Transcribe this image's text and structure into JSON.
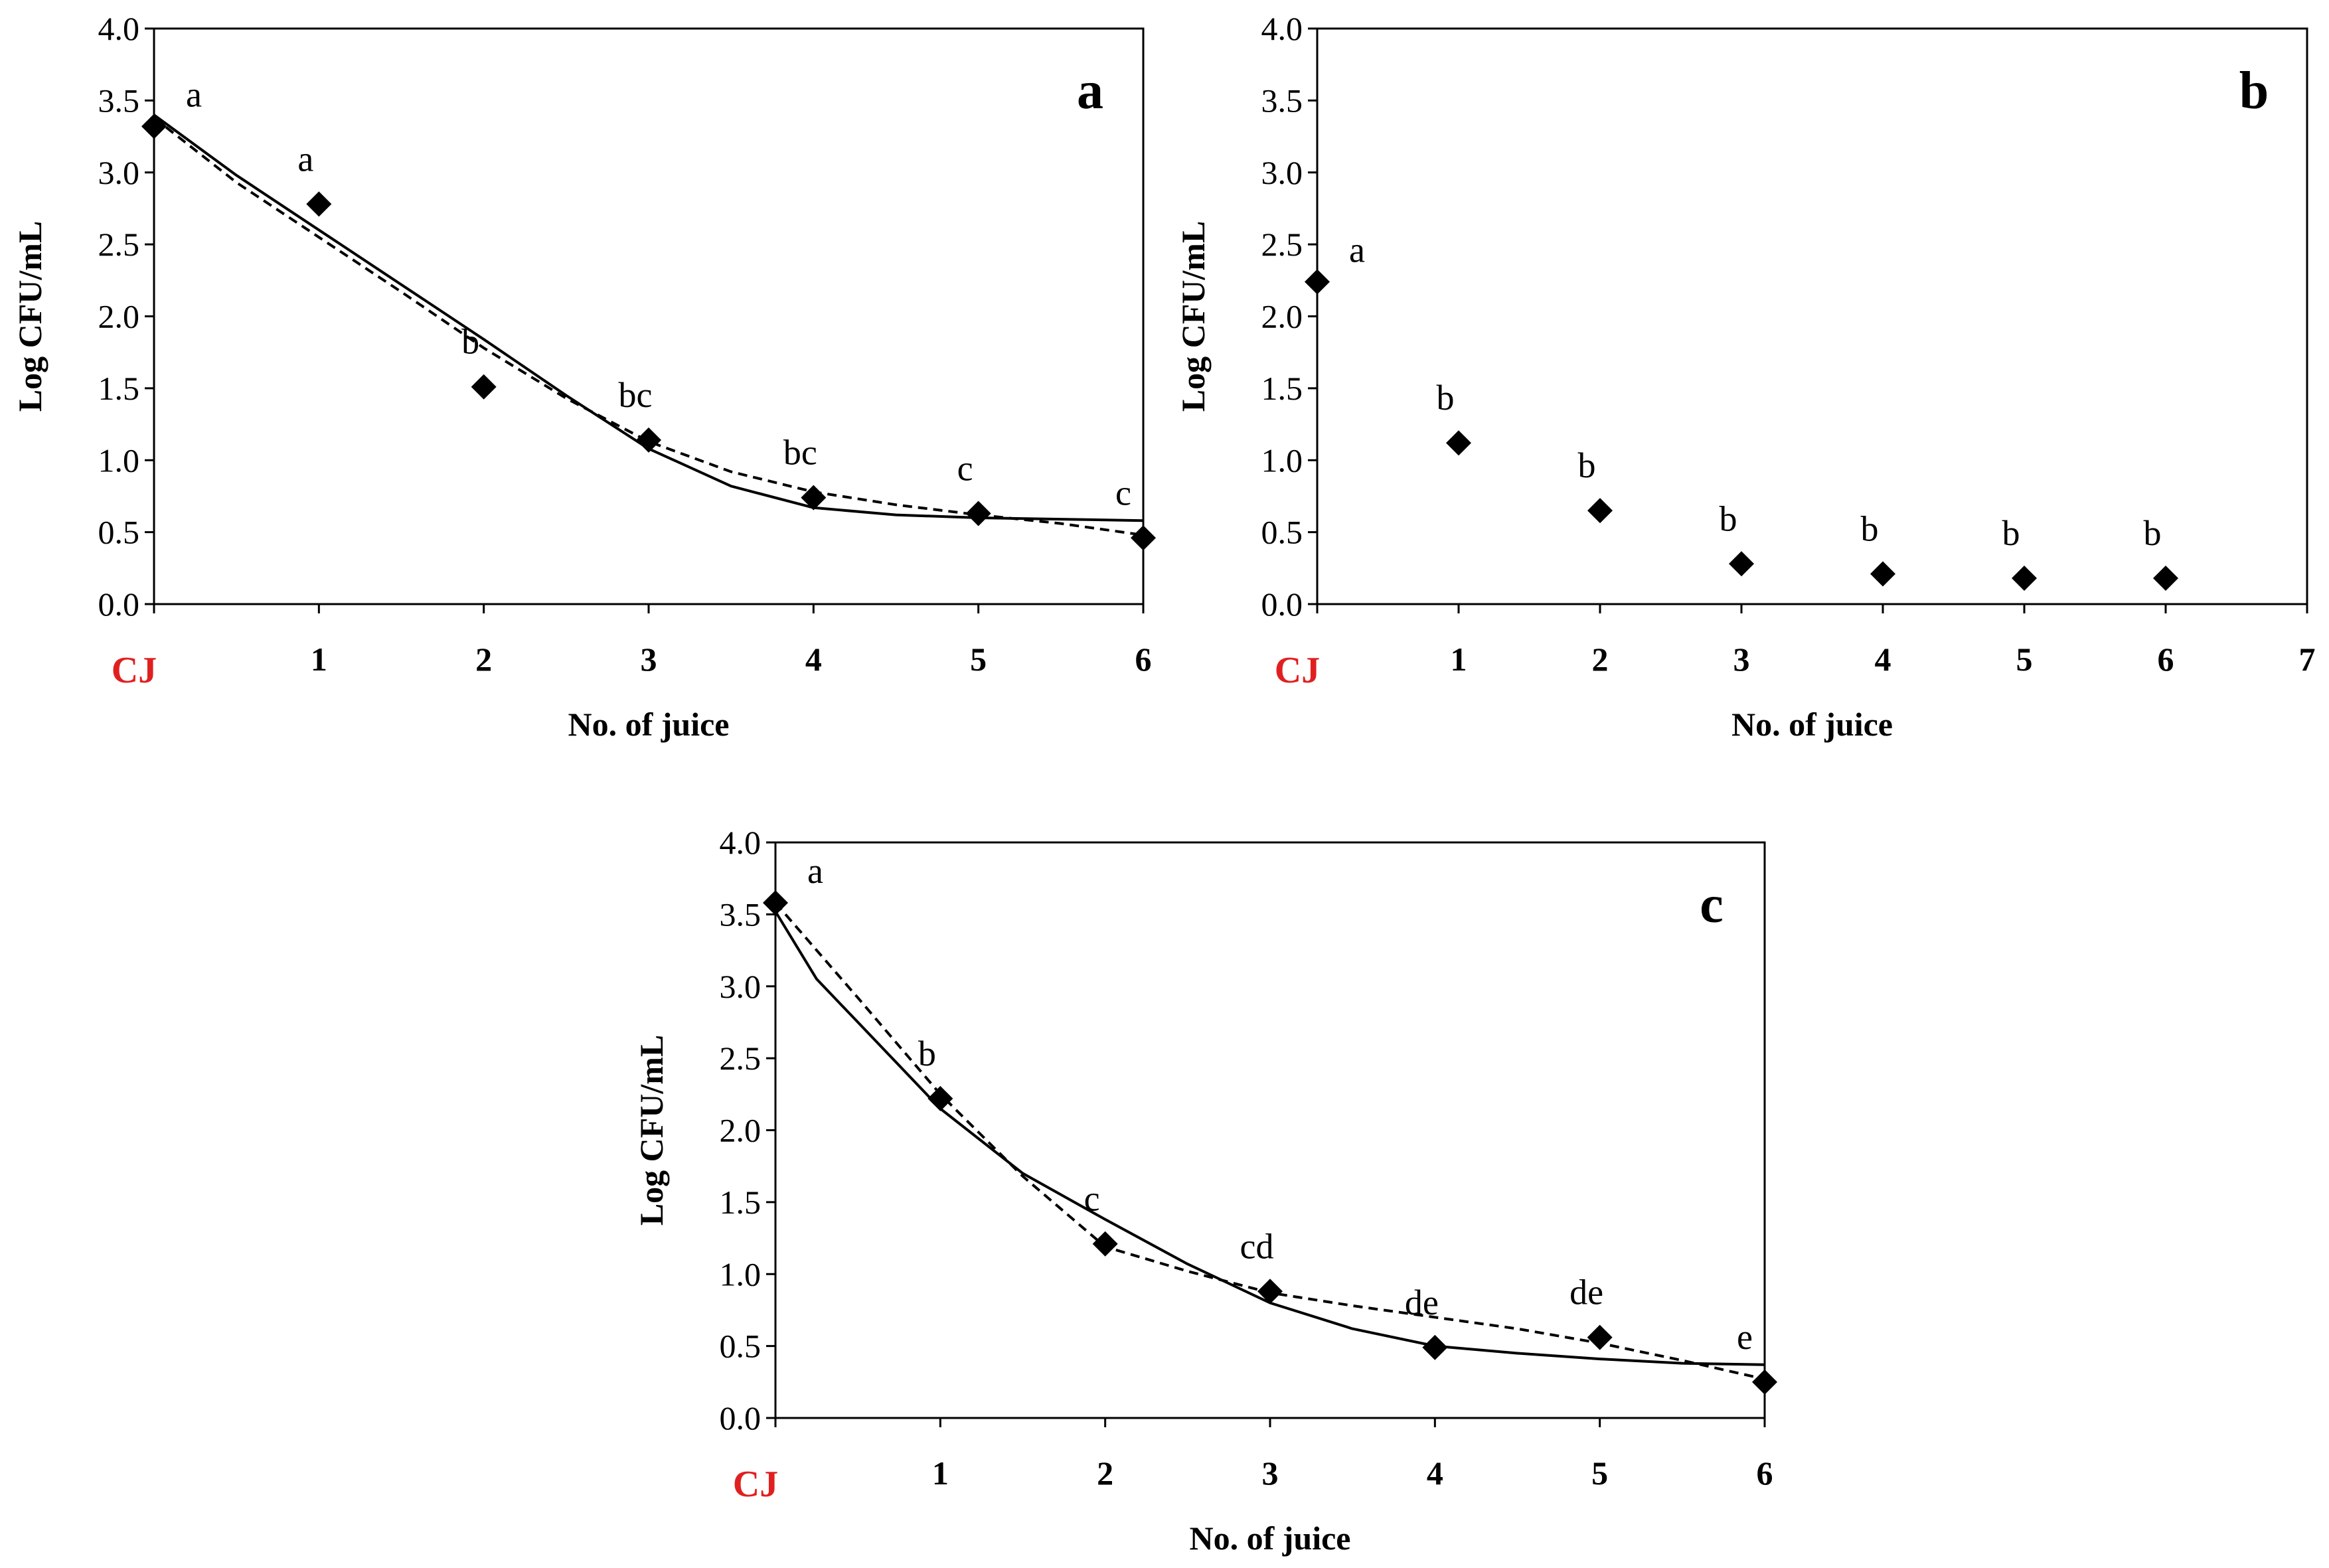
{
  "figure_description": "Log CFU/mL vs number of juice for three panels",
  "chart_data": [
    {
      "type": "scatter",
      "panel": "a",
      "title": "a",
      "xlabel": "No. of juice",
      "ylabel": "Log CFU/mL",
      "xlim": [
        0,
        6
      ],
      "ylim": [
        0,
        4.0
      ],
      "y_ticks": [
        "0.0",
        "0.5",
        "1.0",
        "1.5",
        "2.0",
        "2.5",
        "3.0",
        "3.5",
        "4.0"
      ],
      "x_ticks": [
        {
          "value": 0,
          "label": "CJ",
          "highlight": true
        },
        {
          "value": 1,
          "label": "1"
        },
        {
          "value": 2,
          "label": "2"
        },
        {
          "value": 3,
          "label": "3"
        },
        {
          "value": 4,
          "label": "4"
        },
        {
          "value": 5,
          "label": "5"
        },
        {
          "value": 6,
          "label": "6"
        }
      ],
      "points": [
        {
          "x": 0,
          "y": 3.32,
          "label": "a"
        },
        {
          "x": 1,
          "y": 2.78,
          "label": "a"
        },
        {
          "x": 2,
          "y": 1.51,
          "label": "b"
        },
        {
          "x": 3,
          "y": 1.14,
          "label": "bc"
        },
        {
          "x": 4,
          "y": 0.74,
          "label": "bc"
        },
        {
          "x": 5,
          "y": 0.63,
          "label": "c"
        },
        {
          "x": 6,
          "y": 0.46,
          "label": "c"
        }
      ],
      "fit_solid": [
        [
          0,
          3.4
        ],
        [
          0.5,
          2.98
        ],
        [
          1,
          2.6
        ],
        [
          1.5,
          2.22
        ],
        [
          2,
          1.84
        ],
        [
          2.5,
          1.45
        ],
        [
          3,
          1.08
        ],
        [
          3.5,
          0.82
        ],
        [
          4,
          0.67
        ],
        [
          4.5,
          0.62
        ],
        [
          5,
          0.6
        ],
        [
          5.5,
          0.59
        ],
        [
          6,
          0.58
        ]
      ],
      "fit_dashed": [
        [
          0,
          3.38
        ],
        [
          0.5,
          2.93
        ],
        [
          1,
          2.55
        ],
        [
          1.5,
          2.17
        ],
        [
          2,
          1.78
        ],
        [
          2.5,
          1.43
        ],
        [
          3,
          1.13
        ],
        [
          3.5,
          0.92
        ],
        [
          4,
          0.78
        ],
        [
          4.5,
          0.69
        ],
        [
          5,
          0.62
        ],
        [
          5.5,
          0.56
        ],
        [
          6,
          0.48
        ]
      ]
    },
    {
      "type": "scatter",
      "panel": "b",
      "title": "b",
      "xlabel": "No. of juice",
      "ylabel": "Log CFU/mL",
      "xlim": [
        0,
        7
      ],
      "ylim": [
        0,
        4.0
      ],
      "y_ticks": [
        "0.0",
        "0.5",
        "1.0",
        "1.5",
        "2.0",
        "2.5",
        "3.0",
        "3.5",
        "4.0"
      ],
      "x_ticks": [
        {
          "value": 0,
          "label": "CJ",
          "highlight": true
        },
        {
          "value": 1,
          "label": "1"
        },
        {
          "value": 2,
          "label": "2"
        },
        {
          "value": 3,
          "label": "3"
        },
        {
          "value": 4,
          "label": "4"
        },
        {
          "value": 5,
          "label": "5"
        },
        {
          "value": 6,
          "label": "6"
        },
        {
          "value": 7,
          "label": "7"
        }
      ],
      "points": [
        {
          "x": 0,
          "y": 2.24,
          "label": "a"
        },
        {
          "x": 1,
          "y": 1.12,
          "label": "b"
        },
        {
          "x": 2,
          "y": 0.65,
          "label": "b"
        },
        {
          "x": 3,
          "y": 0.28,
          "label": "b"
        },
        {
          "x": 4,
          "y": 0.21,
          "label": "b"
        },
        {
          "x": 5,
          "y": 0.18,
          "label": "b"
        },
        {
          "x": 6,
          "y": 0.18,
          "label": "b"
        }
      ],
      "fit_solid": [],
      "fit_dashed": []
    },
    {
      "type": "scatter",
      "panel": "c",
      "title": "c",
      "xlabel": "No. of juice",
      "ylabel": "Log CFU/mL",
      "xlim": [
        0,
        6
      ],
      "ylim": [
        0,
        4.0
      ],
      "y_ticks": [
        "0.0",
        "0.5",
        "1.0",
        "1.5",
        "2.0",
        "2.5",
        "3.0",
        "3.5",
        "4.0"
      ],
      "x_ticks": [
        {
          "value": 0,
          "label": "CJ",
          "highlight": true
        },
        {
          "value": 1,
          "label": "1"
        },
        {
          "value": 2,
          "label": "2"
        },
        {
          "value": 3,
          "label": "3"
        },
        {
          "value": 4,
          "label": "4"
        },
        {
          "value": 5,
          "label": "5"
        },
        {
          "value": 6,
          "label": "6"
        }
      ],
      "points": [
        {
          "x": 0,
          "y": 3.58,
          "label": "a"
        },
        {
          "x": 1,
          "y": 2.22,
          "label": "b"
        },
        {
          "x": 2,
          "y": 1.21,
          "label": "c"
        },
        {
          "x": 3,
          "y": 0.88,
          "label": "cd"
        },
        {
          "x": 4,
          "y": 0.49,
          "label": "de"
        },
        {
          "x": 5,
          "y": 0.56,
          "label": "de"
        },
        {
          "x": 6,
          "y": 0.25,
          "label": "e"
        }
      ],
      "fit_solid": [
        [
          0,
          3.52
        ],
        [
          0.25,
          3.05
        ],
        [
          0.5,
          2.75
        ],
        [
          1,
          2.15
        ],
        [
          1.5,
          1.7
        ],
        [
          2,
          1.38
        ],
        [
          2.5,
          1.07
        ],
        [
          3,
          0.8
        ],
        [
          3.5,
          0.62
        ],
        [
          4,
          0.5
        ],
        [
          4.5,
          0.45
        ],
        [
          5,
          0.41
        ],
        [
          5.5,
          0.38
        ],
        [
          6,
          0.37
        ]
      ],
      "fit_dashed": [
        [
          0,
          3.58
        ],
        [
          0.5,
          2.92
        ],
        [
          1,
          2.25
        ],
        [
          1.5,
          1.68
        ],
        [
          2,
          1.19
        ],
        [
          2.5,
          1.02
        ],
        [
          3,
          0.87
        ],
        [
          3.5,
          0.78
        ],
        [
          4,
          0.7
        ],
        [
          4.5,
          0.62
        ],
        [
          5,
          0.52
        ],
        [
          5.5,
          0.4
        ],
        [
          6,
          0.27
        ]
      ]
    }
  ]
}
